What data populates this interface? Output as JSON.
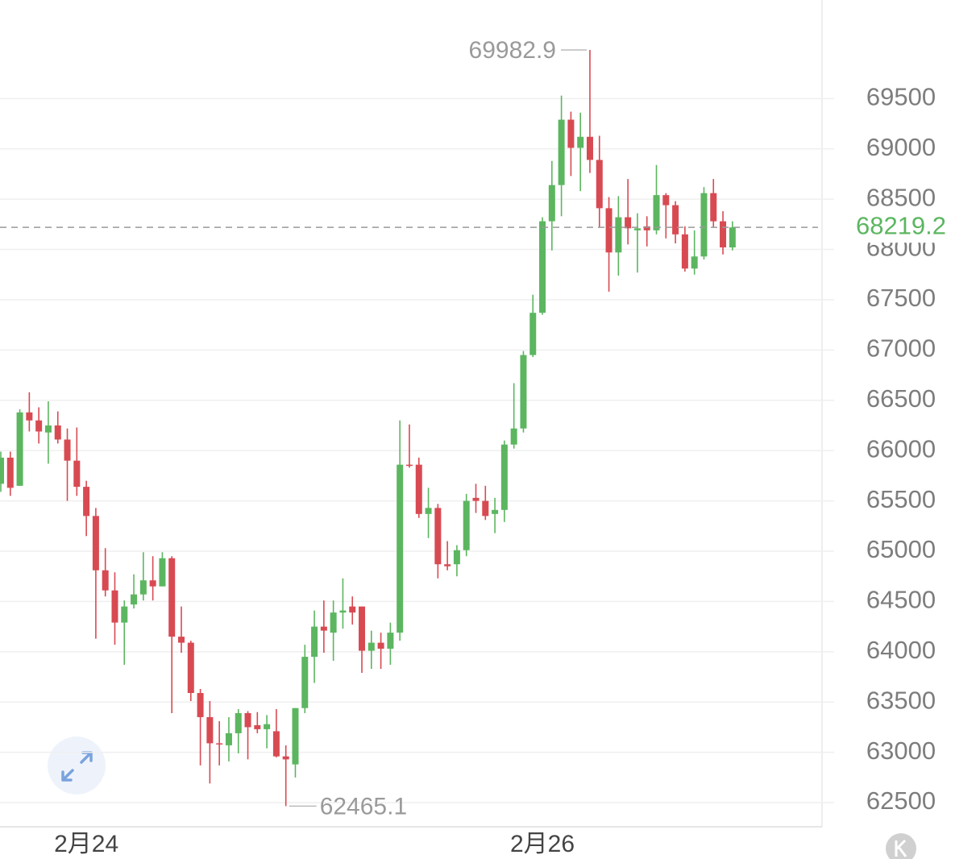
{
  "chart_data": {
    "type": "candlestick",
    "categories": [
      null,
      null,
      null,
      null,
      null,
      null,
      null,
      null,
      null,
      "2月24",
      null,
      null,
      null,
      null,
      null,
      null,
      null,
      null,
      null,
      null,
      null,
      null,
      null,
      null,
      null,
      null,
      null,
      null,
      null,
      null,
      null,
      null,
      null,
      null,
      null,
      null,
      null,
      null,
      null,
      null,
      null,
      null,
      null,
      null,
      null,
      null,
      null,
      null,
      null,
      null,
      null,
      null,
      null,
      null,
      null,
      null,
      null,
      "2月26",
      null,
      null,
      null,
      null,
      null,
      null,
      null,
      null,
      null,
      null,
      null,
      null,
      null,
      null,
      null,
      null,
      null,
      null,
      null,
      null
    ],
    "open": [
      65670,
      65930,
      65650,
      66380,
      66300,
      66180,
      66250,
      66110,
      65900,
      65640,
      65350,
      64810,
      64610,
      64290,
      64470,
      64570,
      64710,
      64650,
      64930,
      64150,
      64090,
      63590,
      63350,
      63090,
      63070,
      63190,
      63390,
      63270,
      63230,
      63210,
      62960,
      62880,
      63440,
      63950,
      64250,
      64190,
      64390,
      64450,
      64450,
      64010,
      64090,
      64030,
      64190,
      65860,
      65860,
      65370,
      65430,
      64870,
      64870,
      65010,
      65530,
      65500,
      65370,
      65410,
      66060,
      66220,
      66950,
      67370,
      68280,
      68640,
      69290,
      69010,
      69120,
      68890,
      68410,
      67970,
      68320,
      68190,
      68230,
      68190,
      68540,
      68440,
      68150,
      67810,
      67930,
      68560,
      68280,
      68020
    ],
    "high": [
      65990,
      65990,
      66410,
      66580,
      66430,
      66490,
      66390,
      66220,
      66230,
      65700,
      65430,
      65030,
      64790,
      64510,
      64770,
      64990,
      64950,
      64990,
      64950,
      64450,
      64110,
      63630,
      63510,
      63310,
      63350,
      63430,
      63410,
      63400,
      63370,
      63430,
      63070,
      63440,
      64070,
      64410,
      64510,
      64510,
      64730,
      64550,
      64450,
      64210,
      64190,
      64290,
      66300,
      66260,
      65930,
      65630,
      65470,
      65100,
      65060,
      65570,
      65670,
      65650,
      65530,
      66100,
      66670,
      66990,
      67550,
      68320,
      68880,
      69530,
      69370,
      69360,
      69982.9,
      69130,
      68520,
      68530,
      68700,
      68360,
      68330,
      68840,
      68560,
      68480,
      68230,
      68190,
      68620,
      68700,
      68380,
      68280
    ],
    "low": [
      65590,
      65550,
      65650,
      66190,
      66070,
      65870,
      66070,
      65500,
      65550,
      65150,
      64130,
      64550,
      64070,
      63870,
      64430,
      64510,
      64510,
      64650,
      63390,
      63990,
      63510,
      62870,
      62690,
      62870,
      62910,
      62990,
      62930,
      63190,
      63040,
      62950,
      62465.1,
      62750,
      63390,
      63690,
      63990,
      63910,
      64230,
      64270,
      63790,
      63830,
      63830,
      63870,
      64110,
      65830,
      65330,
      65130,
      64730,
      64810,
      64750,
      64950,
      65380,
      65310,
      65180,
      65290,
      66020,
      66180,
      66930,
      67350,
      67990,
      68330,
      68730,
      68580,
      68760,
      68220,
      67580,
      67740,
      68050,
      67770,
      68030,
      68150,
      68110,
      68060,
      67780,
      67750,
      67900,
      68220,
      67950,
      67990
    ],
    "close": [
      65930,
      65630,
      66380,
      66300,
      66190,
      66250,
      66110,
      65900,
      65640,
      65350,
      64810,
      64610,
      64290,
      64450,
      64570,
      64710,
      64650,
      64930,
      64150,
      64090,
      63590,
      63350,
      63090,
      63080,
      63190,
      63390,
      63250,
      63230,
      63280,
      62960,
      62930,
      63440,
      63950,
      64250,
      64210,
      64390,
      64410,
      64390,
      64010,
      64090,
      64030,
      64190,
      65860,
      65850,
      65370,
      65430,
      64870,
      64850,
      65010,
      65500,
      65500,
      65350,
      65410,
      66060,
      66220,
      66950,
      67370,
      68280,
      68640,
      69290,
      69010,
      69120,
      68890,
      68410,
      67970,
      68320,
      68210,
      68210,
      68190,
      68540,
      68440,
      68150,
      67810,
      67930,
      68560,
      68280,
      68020,
      68219.2
    ],
    "up_color": "#5cb660",
    "down_color": "#d84a52",
    "ylim": [
      62260,
      70480
    ],
    "yticks": [
      62500,
      63000,
      63500,
      64000,
      64500,
      65000,
      65500,
      66000,
      66500,
      67000,
      67500,
      68000,
      68500,
      69000,
      69500
    ],
    "grid": true
  }
}
